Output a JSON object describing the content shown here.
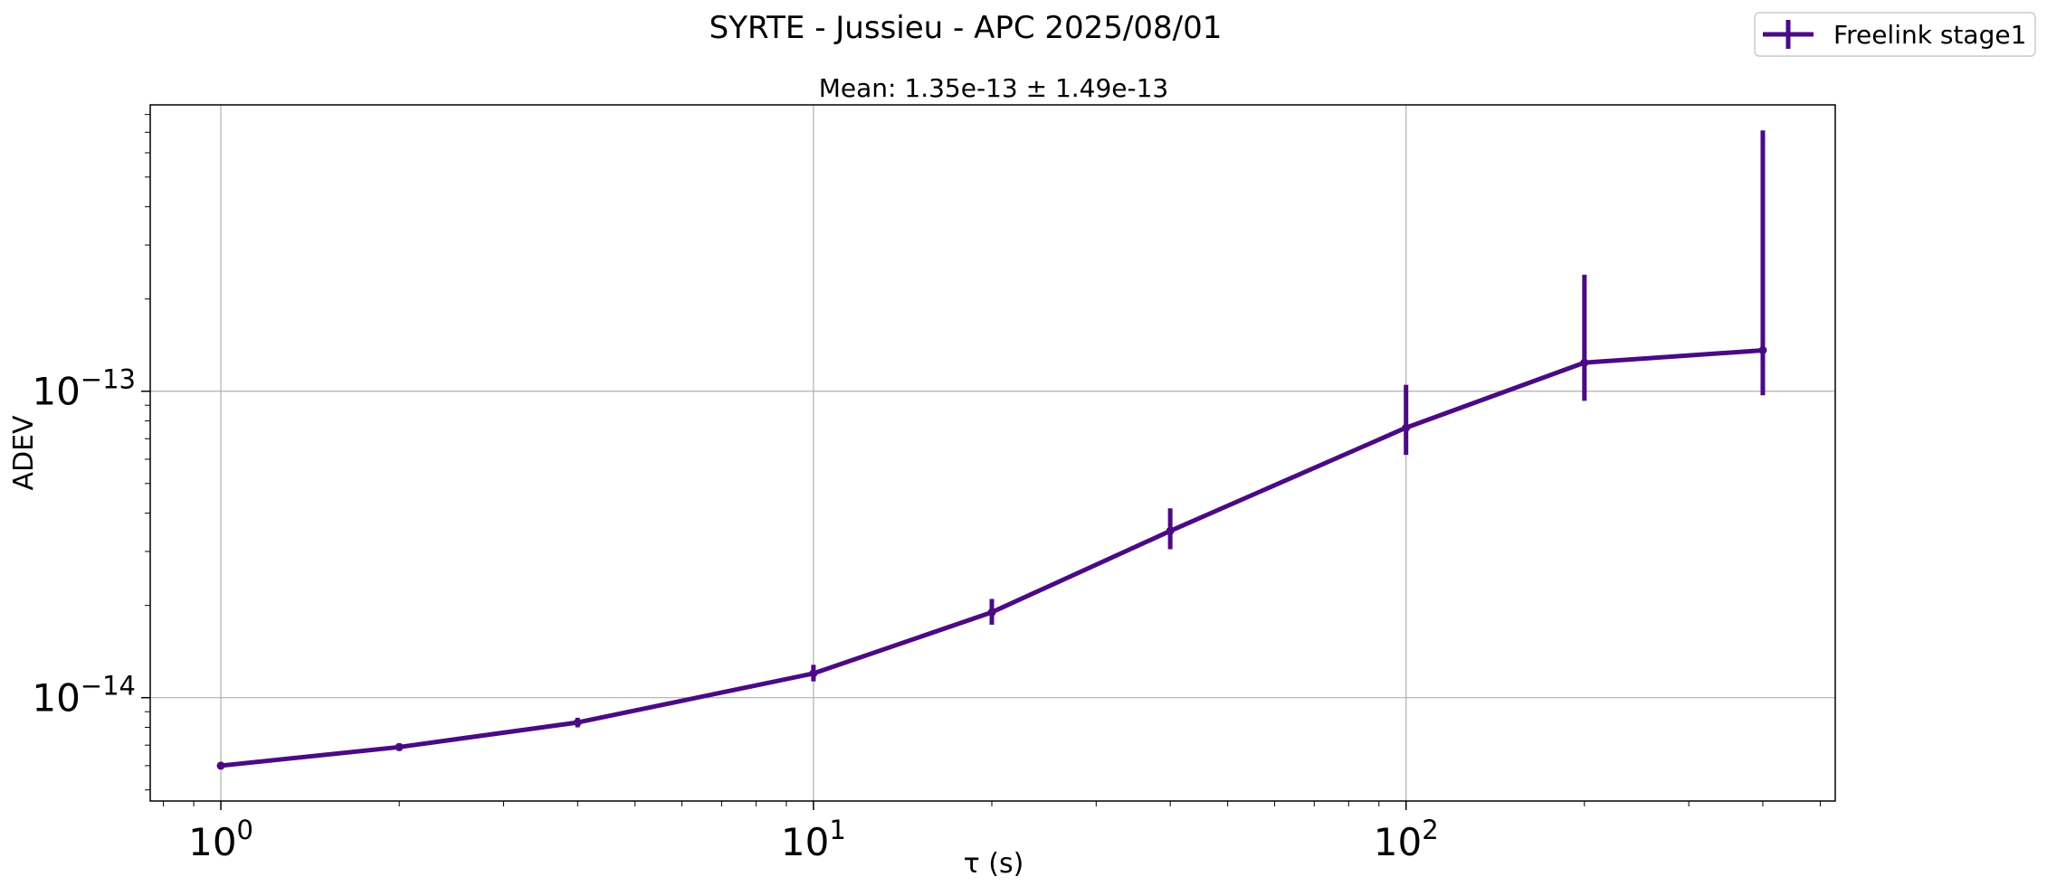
{
  "chart_data": {
    "type": "line",
    "title": "SYRTE - Jussieu - APC 2025/08/01",
    "subtitle": "Mean: 1.35e-13 ± 1.49e-13",
    "xlabel": "τ (s)",
    "ylabel": "ADEV",
    "xscale": "log",
    "yscale": "log",
    "xlim": [
      0.76,
      530
    ],
    "ylim": [
      4.6e-15,
      8.6e-13
    ],
    "grid": true,
    "legend_position": "top-right",
    "x_ticks": [
      {
        "value": 1,
        "base": "10",
        "exp": "0"
      },
      {
        "value": 10,
        "base": "10",
        "exp": "1"
      },
      {
        "value": 100,
        "base": "10",
        "exp": "2"
      }
    ],
    "y_ticks": [
      {
        "value": 1e-14,
        "base": "10",
        "exp": "−14"
      },
      {
        "value": 1e-13,
        "base": "10",
        "exp": "−13"
      }
    ],
    "series": [
      {
        "name": "Freelink stage1",
        "color": "#4b0a85",
        "x": [
          1,
          2,
          4,
          10,
          20,
          40,
          100,
          200,
          400
        ],
        "y": [
          6e-15,
          6.9e-15,
          8.3e-15,
          1.2e-14,
          1.9e-14,
          3.5e-14,
          7.6e-14,
          1.24e-13,
          1.36e-13
        ],
        "err_low": [
          5.9e-15,
          6.7e-15,
          8e-15,
          1.13e-14,
          1.73e-14,
          3.05e-14,
          6.2e-14,
          9.3e-14,
          9.7e-14
        ],
        "err_high": [
          6.1e-15,
          7.1e-15,
          8.6e-15,
          1.28e-14,
          2.1e-14,
          4.15e-14,
          1.05e-13,
          2.4e-13,
          7.1e-13
        ]
      }
    ]
  }
}
